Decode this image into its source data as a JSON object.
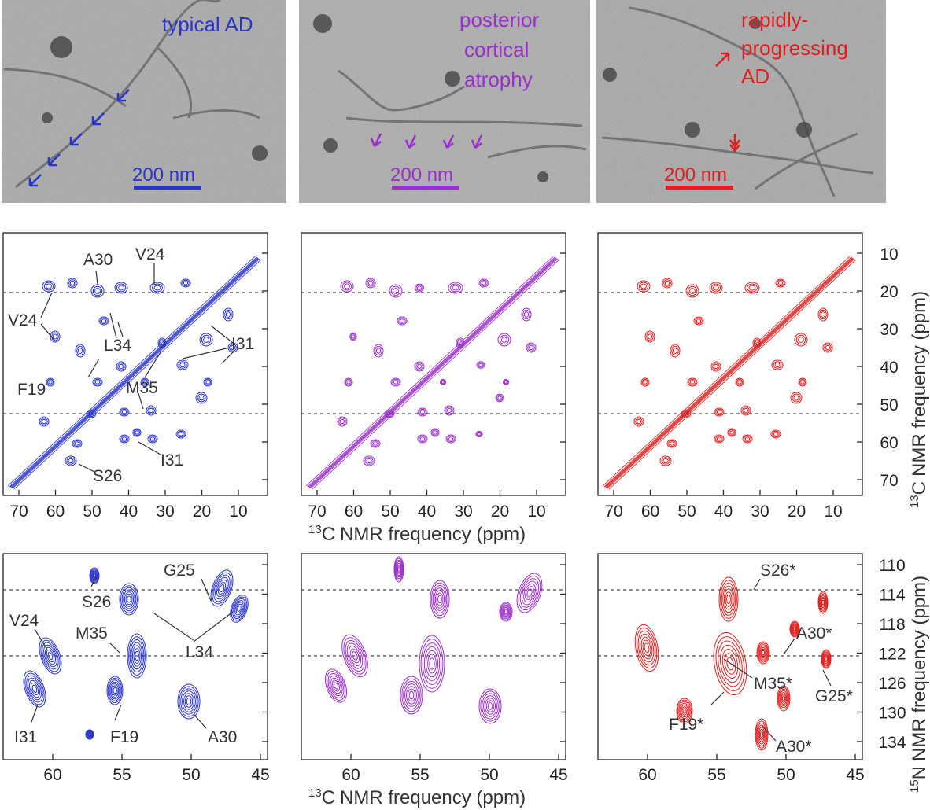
{
  "colors": {
    "typical": "#2a35cc",
    "posterior": "#9b2fc9",
    "rapid": "#e02020",
    "text": "#333333",
    "axis": "#222222"
  },
  "tem_panels": [
    {
      "id": "typical",
      "label_lines": [
        "typical AD"
      ],
      "scale_label": "200 nm",
      "color": "#2a35cc"
    },
    {
      "id": "posterior",
      "label_lines": [
        "posterior",
        "cortical",
        "atrophy"
      ],
      "scale_label": "200 nm",
      "color": "#9b2fc9"
    },
    {
      "id": "rapid",
      "label_lines": [
        "rapidly-",
        "progressing",
        "AD"
      ],
      "scale_label": "200 nm",
      "color": "#e02020"
    }
  ],
  "cc_spectra": {
    "x_ticks": [
      "70",
      "60",
      "50",
      "40",
      "30",
      "20",
      "10"
    ],
    "y_ticks": [
      "10",
      "20",
      "30",
      "40",
      "50",
      "60",
      "70"
    ],
    "x_axis_label": "NMR frequency (ppm)",
    "x_axis_sup": "13",
    "x_axis_nucleus": "C",
    "y_axis_label": "NMR frequency (ppm)",
    "y_axis_sup": "13",
    "y_axis_nucleus": "C",
    "annotations": [
      "A30",
      "V24",
      "V24",
      "L34",
      "I31",
      "F19",
      "M35",
      "I31",
      "S26"
    ]
  },
  "nc_spectra": {
    "x_ticks": [
      "60",
      "55",
      "50",
      "45"
    ],
    "y_ticks": [
      "110",
      "114",
      "118",
      "122",
      "126",
      "130",
      "134"
    ],
    "x_axis_label": "NMR frequency (ppm)",
    "x_axis_sup": "13",
    "x_axis_nucleus": "C",
    "y_axis_label": "NMR frequency (ppm)",
    "y_axis_sup": "15",
    "y_axis_nucleus": "N",
    "annotations_typical": [
      "G25",
      "S26",
      "V24",
      "M35",
      "L34",
      "I31",
      "F19",
      "A30"
    ],
    "annotations_rapid": [
      "S26*",
      "A30*",
      "M35*",
      "G25*",
      "F19*",
      "A30*"
    ]
  }
}
